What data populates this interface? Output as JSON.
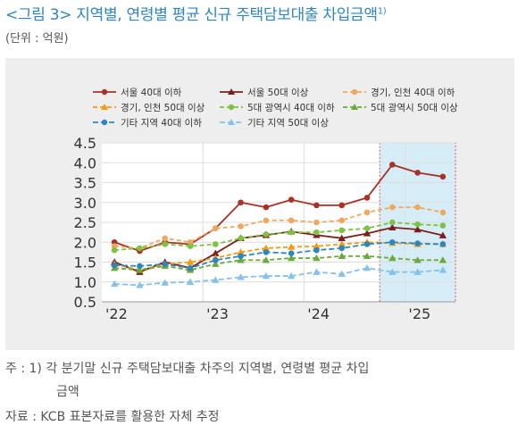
{
  "title": "<그림 3> 지역별, 연령별 평균 신규 주택담보대출 차입금액",
  "title_sup": "1)",
  "unit": "(단위 : 억원)",
  "note": {
    "prefix": "주 : 1)",
    "line1": "각 분기말 신규 주택담보대출 차주의 지역별, 연령별 평균 차입",
    "line2": "금액"
  },
  "source": "자료 : KCB 표본자료를 활용한 자체 추정",
  "chart_data": {
    "type": "line",
    "ylim": [
      0.5,
      4.5
    ],
    "yticks": [
      "4.5",
      "4.0",
      "3.5",
      "3.0",
      "2.5",
      "2.0",
      "1.5",
      "1.0",
      "0.5"
    ],
    "ytick_values": [
      4.5,
      4.0,
      3.5,
      3.0,
      2.5,
      2.0,
      1.5,
      1.0,
      0.5
    ],
    "x_labels": [
      "'22",
      "'23",
      "'24",
      "'25"
    ],
    "x_label_index": [
      0,
      4,
      8,
      12
    ],
    "highlight_range": [
      11,
      14
    ],
    "grid": true,
    "legend_position": "top",
    "series": [
      {
        "name": "서울 40대 이하",
        "color": "#a93226",
        "dash": "",
        "marker": "circle",
        "values": [
          2.0,
          1.78,
          2.0,
          1.95,
          2.35,
          3.0,
          2.88,
          3.07,
          2.93,
          2.93,
          3.12,
          3.95,
          3.75,
          3.65
        ]
      },
      {
        "name": "서울 50대 이상",
        "color": "#7b1e1e",
        "dash": "",
        "marker": "triangle",
        "values": [
          1.5,
          1.25,
          1.5,
          1.35,
          1.72,
          2.1,
          2.18,
          2.27,
          2.18,
          2.1,
          2.22,
          2.37,
          2.32,
          2.17
        ]
      },
      {
        "name": "경기, 인천 40대 이하",
        "color": "#f0a860",
        "dash": "5,3",
        "marker": "circle",
        "values": [
          1.9,
          1.85,
          2.1,
          2.0,
          2.35,
          2.4,
          2.55,
          2.55,
          2.5,
          2.55,
          2.75,
          2.88,
          2.88,
          2.75
        ]
      },
      {
        "name": "경기, 인천 50대 이상",
        "color": "#f39c12",
        "dash": "5,3",
        "marker": "triangle",
        "values": [
          1.45,
          1.3,
          1.45,
          1.5,
          1.6,
          1.75,
          1.85,
          1.88,
          1.9,
          1.95,
          2.0,
          1.98,
          1.95,
          1.95
        ]
      },
      {
        "name": "5대 광역시 40대 이하",
        "color": "#7dc242",
        "dash": "5,3",
        "marker": "circle",
        "values": [
          1.8,
          1.85,
          1.95,
          1.9,
          1.95,
          2.1,
          2.2,
          2.25,
          2.25,
          2.3,
          2.35,
          2.5,
          2.45,
          2.42
        ]
      },
      {
        "name": "5대 광역시 50대 이상",
        "color": "#6aaa3a",
        "dash": "5,3",
        "marker": "triangle",
        "values": [
          1.35,
          1.3,
          1.4,
          1.3,
          1.45,
          1.55,
          1.55,
          1.6,
          1.6,
          1.65,
          1.65,
          1.6,
          1.55,
          1.55
        ]
      },
      {
        "name": "기타 지역 40대 이하",
        "color": "#2e86c1",
        "dash": "6,3",
        "marker": "circle",
        "values": [
          1.42,
          1.4,
          1.45,
          1.35,
          1.55,
          1.65,
          1.75,
          1.72,
          1.8,
          1.85,
          1.95,
          2.0,
          1.97,
          1.95
        ]
      },
      {
        "name": "기타 지역 50대 이상",
        "color": "#85c1e9",
        "dash": "6,3",
        "marker": "triangle",
        "values": [
          0.95,
          0.92,
          0.98,
          1.0,
          1.05,
          1.12,
          1.15,
          1.15,
          1.25,
          1.2,
          1.35,
          1.25,
          1.25,
          1.3
        ]
      }
    ]
  }
}
